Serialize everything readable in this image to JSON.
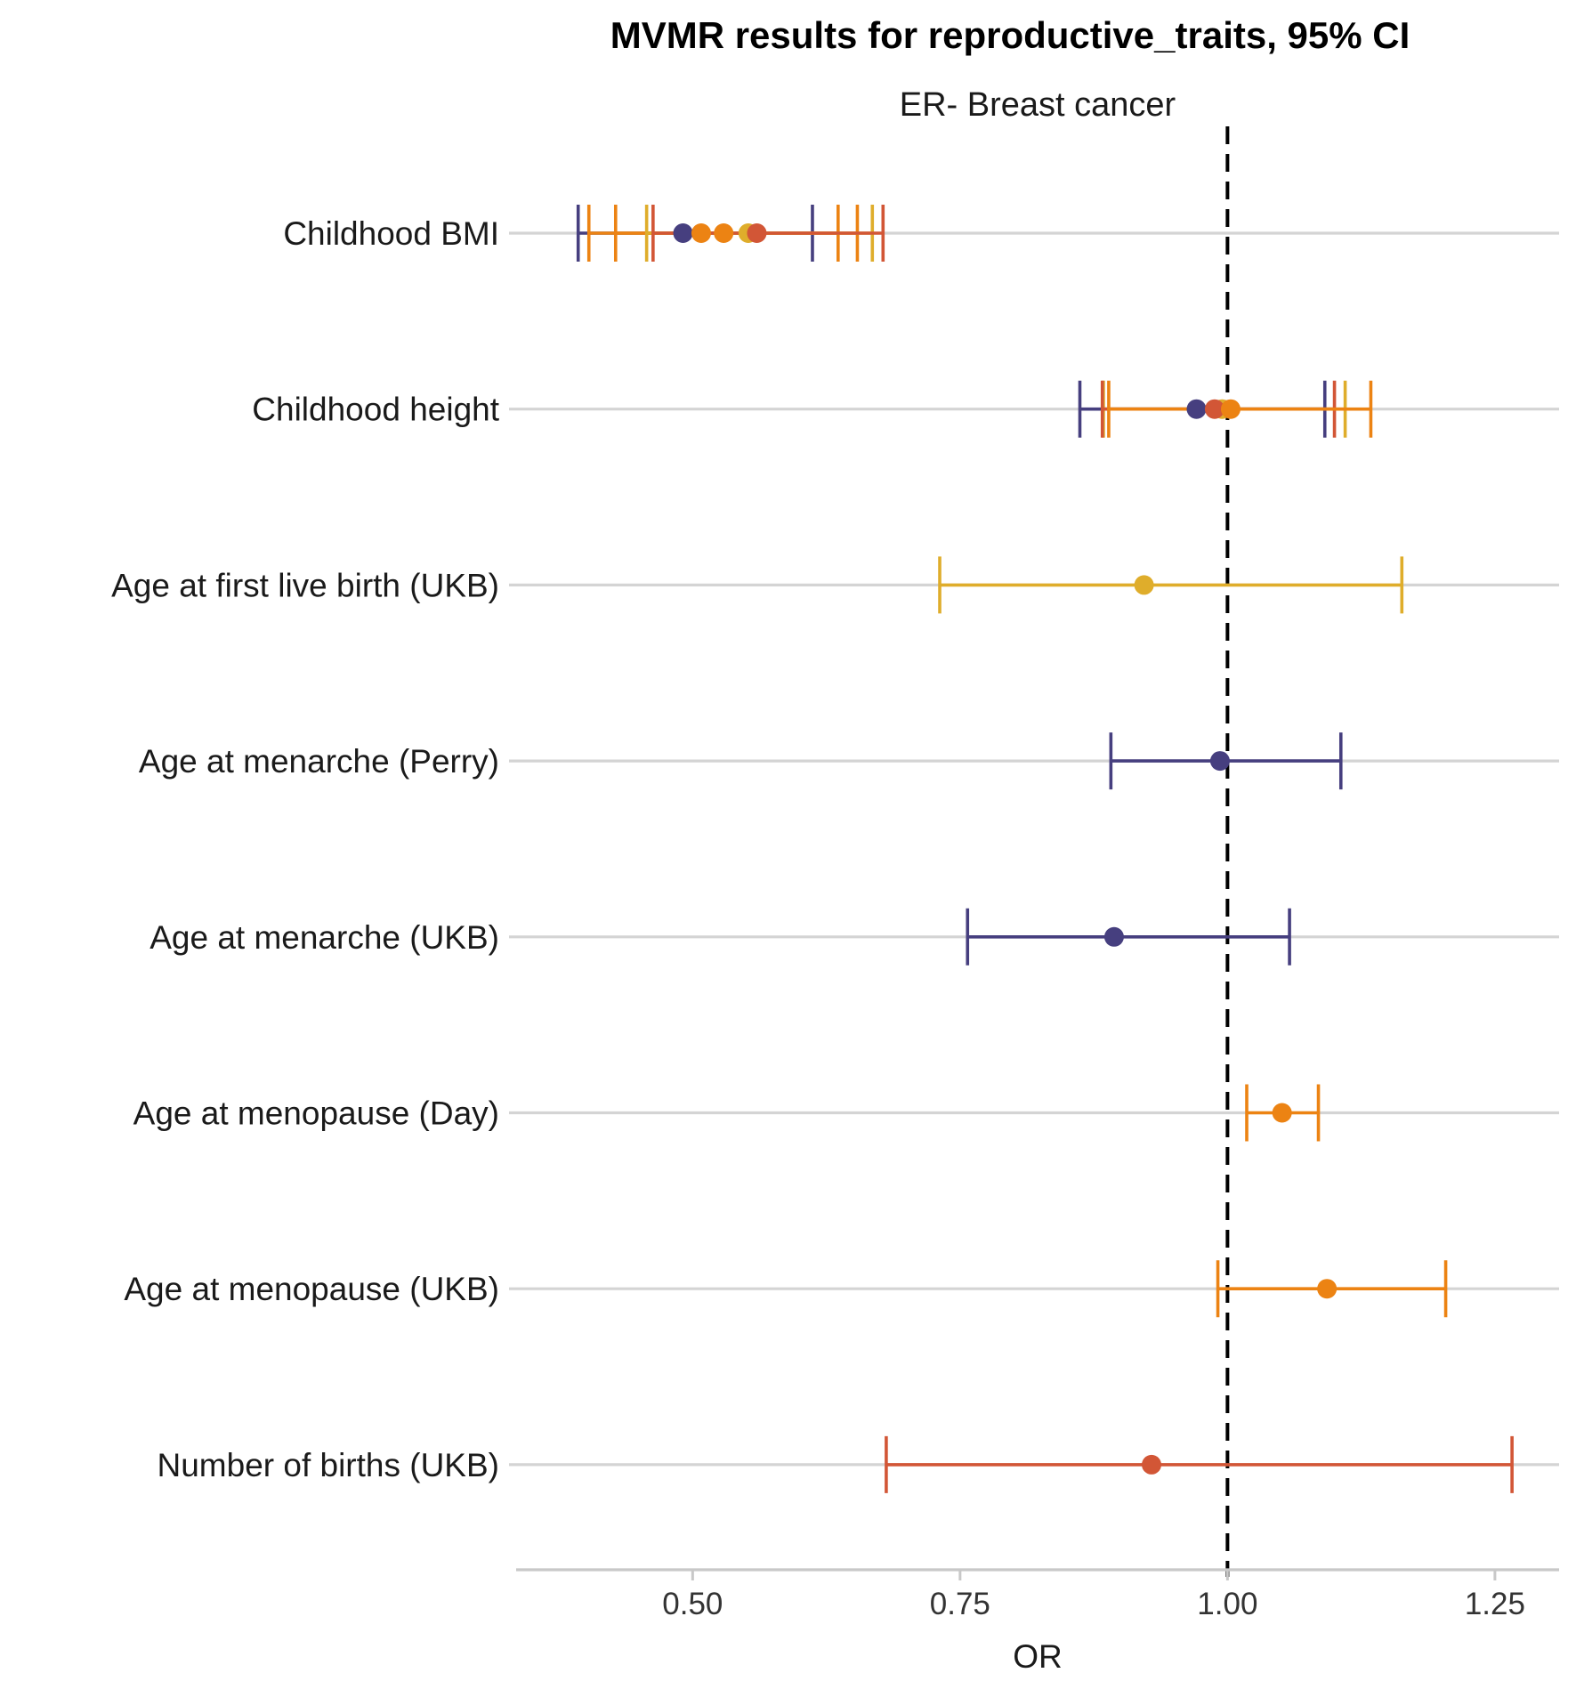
{
  "chart_data": {
    "type": "forest",
    "title": "MVMR results for reproductive_traits, 95% CI",
    "facet": "ER- Breast cancer",
    "xlabel": "OR",
    "xlim": [
      0.335,
      1.31
    ],
    "xticks": [
      0.5,
      0.75,
      1.0,
      1.25
    ],
    "xtick_labels": [
      "0.50",
      "0.75",
      "1.00",
      "1.25"
    ],
    "reference_line": 1.0,
    "colors": {
      "purple": "#463f7f",
      "orange": "#ec8313",
      "yellow": "#dfad2b",
      "red": "#d25636"
    },
    "categories": [
      "Childhood BMI",
      "Childhood height",
      "Age at first live birth (UKB)",
      "Age at menarche (Perry)",
      "Age at menarche (UKB)",
      "Age at menopause (Day)",
      "Age at menopause (UKB)",
      "Number of births (UKB)"
    ],
    "estimates": [
      {
        "category": "Childhood BMI",
        "color": "purple",
        "or": 0.491,
        "lo": 0.393,
        "hi": 0.612
      },
      {
        "category": "Childhood BMI",
        "color": "orange",
        "or": 0.508,
        "lo": 0.403,
        "hi": 0.636
      },
      {
        "category": "Childhood BMI",
        "color": "orange",
        "or": 0.529,
        "lo": 0.428,
        "hi": 0.654
      },
      {
        "category": "Childhood BMI",
        "color": "yellow",
        "or": 0.552,
        "lo": 0.457,
        "hi": 0.668
      },
      {
        "category": "Childhood BMI",
        "color": "red",
        "or": 0.56,
        "lo": 0.463,
        "hi": 0.678
      },
      {
        "category": "Childhood height",
        "color": "purple",
        "or": 0.971,
        "lo": 0.862,
        "hi": 1.091
      },
      {
        "category": "Childhood height",
        "color": "yellow",
        "or": 0.995,
        "lo": 0.884,
        "hi": 1.11
      },
      {
        "category": "Childhood height",
        "color": "red",
        "or": 0.988,
        "lo": 0.883,
        "hi": 1.1
      },
      {
        "category": "Childhood height",
        "color": "orange",
        "or": 1.003,
        "lo": 0.889,
        "hi": 1.134
      },
      {
        "category": "Age at first live birth (UKB)",
        "color": "yellow",
        "or": 0.922,
        "lo": 0.731,
        "hi": 1.163
      },
      {
        "category": "Age at menarche (Perry)",
        "color": "purple",
        "or": 0.993,
        "lo": 0.891,
        "hi": 1.106
      },
      {
        "category": "Age at menarche (UKB)",
        "color": "purple",
        "or": 0.894,
        "lo": 0.757,
        "hi": 1.058
      },
      {
        "category": "Age at menopause (Day)",
        "color": "orange",
        "or": 1.051,
        "lo": 1.018,
        "hi": 1.085
      },
      {
        "category": "Age at menopause (UKB)",
        "color": "orange",
        "or": 1.093,
        "lo": 0.991,
        "hi": 1.204
      },
      {
        "category": "Number of births (UKB)",
        "color": "red",
        "or": 0.929,
        "lo": 0.681,
        "hi": 1.266
      }
    ]
  }
}
